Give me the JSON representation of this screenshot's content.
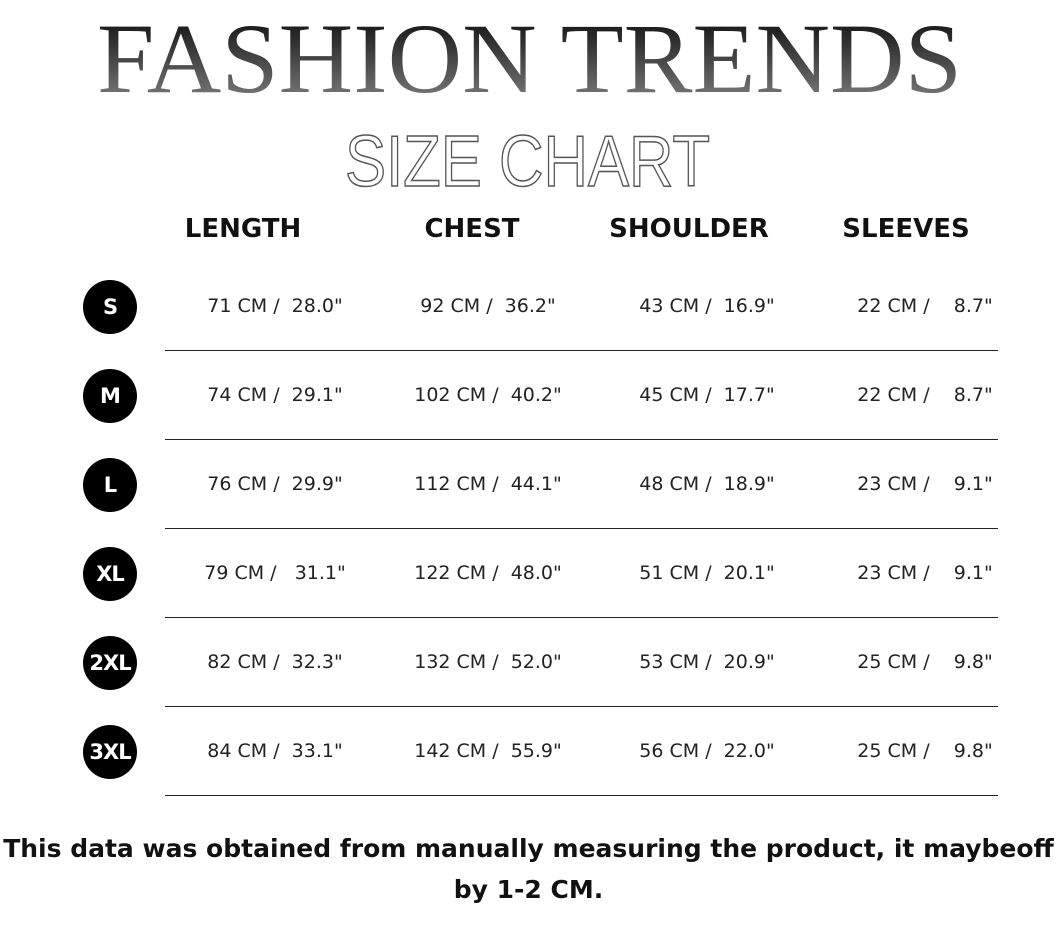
{
  "title": "FASHION TRENDS",
  "subtitle": "SIZE CHART",
  "columns": [
    "LENGTH",
    "CHEST",
    "SHOULDER",
    "SLEEVES"
  ],
  "rows": [
    {
      "size": "S",
      "values": [
        "71 CM /  28.0\"",
        "92 CM /  36.2\"",
        "43 CM /  16.9\"",
        "22 CM /    8.7\""
      ]
    },
    {
      "size": "M",
      "values": [
        "74 CM /  29.1\"",
        "102 CM /  40.2\"",
        "45 CM /  17.7\"",
        "22 CM /    8.7\""
      ]
    },
    {
      "size": "L",
      "values": [
        "76 CM /  29.9\"",
        "112 CM /  44.1\"",
        "48 CM /  18.9\"",
        "23 CM /    9.1\""
      ]
    },
    {
      "size": "XL",
      "values": [
        "79 CM /   31.1\"",
        "122 CM /  48.0\"",
        "51 CM /  20.1\"",
        "23 CM /    9.1\""
      ]
    },
    {
      "size": "2XL",
      "values": [
        "82 CM /  32.3\"",
        "132 CM /  52.0\"",
        "53 CM /  20.9\"",
        "25 CM /    9.8\""
      ]
    },
    {
      "size": "3XL",
      "values": [
        "84 CM /  33.1\"",
        "142 CM /  55.9\"",
        "56 CM /  22.0\"",
        "25 CM /    9.8\""
      ]
    }
  ],
  "note": {
    "line1": "This data was obtained from manually measuring the product, it maybeoff",
    "line2": "by 1-2 CM."
  }
}
